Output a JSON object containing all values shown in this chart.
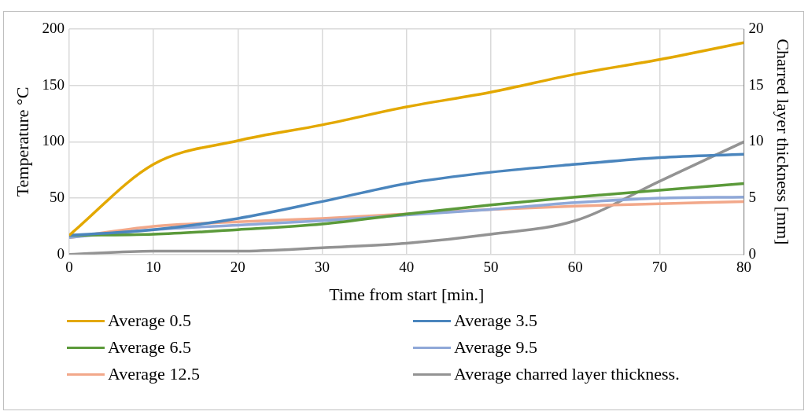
{
  "chart_data": {
    "type": "line",
    "xlabel": "Time from start [min.]",
    "ylabel": "Temperature °C",
    "y2label": "Charred layer thickness [mm]",
    "x": [
      0,
      10,
      20,
      30,
      40,
      50,
      60,
      70,
      80
    ],
    "xlim": [
      0,
      80
    ],
    "xticks": [
      0,
      10,
      20,
      30,
      40,
      50,
      60,
      70,
      80
    ],
    "ylim": [
      0,
      200
    ],
    "yticks": [
      0,
      50,
      100,
      150,
      200
    ],
    "y2lim": [
      0,
      20
    ],
    "y2ticks": [
      0,
      5,
      10,
      15,
      20
    ],
    "grid": true,
    "legend": "bottom",
    "marker": "none",
    "line_style": "solid",
    "series": [
      {
        "name": "Average 0.5",
        "color": "#e3a800",
        "values": [
          17,
          80,
          101,
          115,
          131,
          144,
          160,
          173,
          188
        ]
      },
      {
        "name": "Average 3.5",
        "color": "#4a85bd",
        "values": [
          17,
          22,
          32,
          47,
          63,
          73,
          80,
          86,
          89
        ]
      },
      {
        "name": "Average 6.5",
        "color": "#5b9a3a",
        "values": [
          17,
          18,
          22,
          27,
          36,
          44,
          51,
          57,
          63
        ]
      },
      {
        "name": "Average 9.5",
        "color": "#8fa8d8",
        "values": [
          15,
          22,
          26,
          30,
          35,
          40,
          46,
          50,
          51
        ]
      },
      {
        "name": "Average 12.5",
        "color": "#f2a88a",
        "values": [
          15,
          25,
          29,
          32,
          36,
          40,
          43,
          45,
          47
        ]
      },
      {
        "name": "Average charred layer thickness.",
        "color": "#939393",
        "axis": "y2",
        "values": [
          0,
          0.3,
          0.3,
          0.6,
          1,
          1.8,
          3,
          6.5,
          10
        ]
      }
    ]
  }
}
